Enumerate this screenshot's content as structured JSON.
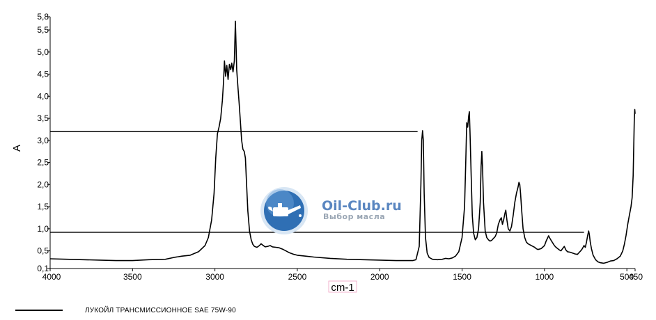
{
  "chart_data": {
    "type": "line",
    "title": "",
    "xlabel": "cm-1",
    "ylabel": "A",
    "xlim": [
      4000,
      450
    ],
    "ylim": [
      0.1,
      5.8
    ],
    "x_reversed": true,
    "yticks": [
      "5,8",
      "5,5",
      "5,0",
      "4,5",
      "4,0",
      "3,5",
      "3,0",
      "2,5",
      "2,0",
      "1,5",
      "1,0",
      "0,5",
      "0,1"
    ],
    "ytick_values": [
      5.8,
      5.5,
      5.0,
      4.5,
      4.0,
      3.5,
      3.0,
      2.5,
      2.0,
      1.5,
      1.0,
      0.5,
      0.1
    ],
    "xticks": [
      "4000",
      "3500",
      "3000",
      "2500",
      "2000",
      "1500",
      "1000",
      "500",
      "450"
    ],
    "xtick_values": [
      4000,
      3500,
      3000,
      2500,
      2000,
      1500,
      1000,
      500,
      450
    ],
    "reference_lines": [
      {
        "y": 3.2,
        "x_from": 4000,
        "x_to": 1770
      },
      {
        "y": 0.92,
        "x_from": 4000,
        "x_to": 760
      }
    ],
    "series": [
      {
        "name": "ЛУКОЙЛ ТРАНСМИССИОННОЕ SAE 75W-90",
        "color": "#000000",
        "points": [
          [
            4000,
            0.32
          ],
          [
            3900,
            0.31
          ],
          [
            3800,
            0.3
          ],
          [
            3700,
            0.29
          ],
          [
            3600,
            0.28
          ],
          [
            3500,
            0.28
          ],
          [
            3400,
            0.3
          ],
          [
            3300,
            0.31
          ],
          [
            3250,
            0.35
          ],
          [
            3200,
            0.38
          ],
          [
            3150,
            0.4
          ],
          [
            3100,
            0.48
          ],
          [
            3060,
            0.62
          ],
          [
            3040,
            0.8
          ],
          [
            3020,
            1.2
          ],
          [
            3005,
            1.8
          ],
          [
            2995,
            2.6
          ],
          [
            2985,
            3.15
          ],
          [
            2975,
            3.3
          ],
          [
            2965,
            3.5
          ],
          [
            2955,
            3.9
          ],
          [
            2948,
            4.3
          ],
          [
            2942,
            4.8
          ],
          [
            2935,
            4.45
          ],
          [
            2928,
            4.7
          ],
          [
            2920,
            4.38
          ],
          [
            2912,
            4.72
          ],
          [
            2904,
            4.6
          ],
          [
            2898,
            4.75
          ],
          [
            2890,
            4.55
          ],
          [
            2882,
            4.8
          ],
          [
            2876,
            5.7
          ],
          [
            2872,
            5.2
          ],
          [
            2868,
            4.6
          ],
          [
            2860,
            4.2
          ],
          [
            2852,
            3.8
          ],
          [
            2845,
            3.4
          ],
          [
            2838,
            3.0
          ],
          [
            2830,
            2.8
          ],
          [
            2822,
            2.75
          ],
          [
            2815,
            2.6
          ],
          [
            2808,
            2.0
          ],
          [
            2800,
            1.4
          ],
          [
            2790,
            0.95
          ],
          [
            2780,
            0.75
          ],
          [
            2770,
            0.65
          ],
          [
            2760,
            0.6
          ],
          [
            2745,
            0.58
          ],
          [
            2730,
            0.62
          ],
          [
            2720,
            0.66
          ],
          [
            2710,
            0.63
          ],
          [
            2695,
            0.59
          ],
          [
            2680,
            0.6
          ],
          [
            2665,
            0.62
          ],
          [
            2650,
            0.59
          ],
          [
            2630,
            0.58
          ],
          [
            2610,
            0.57
          ],
          [
            2590,
            0.54
          ],
          [
            2570,
            0.5
          ],
          [
            2550,
            0.46
          ],
          [
            2520,
            0.42
          ],
          [
            2500,
            0.4
          ],
          [
            2450,
            0.38
          ],
          [
            2400,
            0.36
          ],
          [
            2300,
            0.33
          ],
          [
            2200,
            0.31
          ],
          [
            2100,
            0.3
          ],
          [
            2000,
            0.29
          ],
          [
            1900,
            0.28
          ],
          [
            1800,
            0.28
          ],
          [
            1780,
            0.3
          ],
          [
            1760,
            0.6
          ],
          [
            1750,
            2.0
          ],
          [
            1745,
            3.0
          ],
          [
            1740,
            3.22
          ],
          [
            1735,
            3.0
          ],
          [
            1730,
            1.8
          ],
          [
            1722,
            0.8
          ],
          [
            1712,
            0.45
          ],
          [
            1700,
            0.35
          ],
          [
            1680,
            0.31
          ],
          [
            1650,
            0.3
          ],
          [
            1620,
            0.31
          ],
          [
            1600,
            0.33
          ],
          [
            1580,
            0.32
          ],
          [
            1560,
            0.34
          ],
          [
            1540,
            0.38
          ],
          [
            1520,
            0.48
          ],
          [
            1500,
            0.8
          ],
          [
            1485,
            1.5
          ],
          [
            1478,
            2.5
          ],
          [
            1472,
            3.4
          ],
          [
            1466,
            3.3
          ],
          [
            1460,
            3.55
          ],
          [
            1456,
            3.65
          ],
          [
            1452,
            3.2
          ],
          [
            1445,
            2.2
          ],
          [
            1438,
            1.3
          ],
          [
            1430,
            0.9
          ],
          [
            1420,
            0.75
          ],
          [
            1410,
            0.8
          ],
          [
            1400,
            1.0
          ],
          [
            1390,
            1.6
          ],
          [
            1385,
            2.4
          ],
          [
            1380,
            2.75
          ],
          [
            1376,
            2.4
          ],
          [
            1370,
            1.6
          ],
          [
            1360,
            0.95
          ],
          [
            1350,
            0.8
          ],
          [
            1340,
            0.75
          ],
          [
            1330,
            0.72
          ],
          [
            1320,
            0.74
          ],
          [
            1310,
            0.78
          ],
          [
            1300,
            0.82
          ],
          [
            1290,
            0.9
          ],
          [
            1280,
            1.1
          ],
          [
            1270,
            1.2
          ],
          [
            1262,
            1.25
          ],
          [
            1255,
            1.1
          ],
          [
            1248,
            1.2
          ],
          [
            1240,
            1.35
          ],
          [
            1235,
            1.42
          ],
          [
            1228,
            1.2
          ],
          [
            1220,
            1.0
          ],
          [
            1210,
            0.95
          ],
          [
            1200,
            1.05
          ],
          [
            1190,
            1.3
          ],
          [
            1180,
            1.6
          ],
          [
            1170,
            1.8
          ],
          [
            1160,
            1.95
          ],
          [
            1155,
            2.05
          ],
          [
            1150,
            2.0
          ],
          [
            1145,
            1.8
          ],
          [
            1138,
            1.4
          ],
          [
            1130,
            1.0
          ],
          [
            1120,
            0.8
          ],
          [
            1110,
            0.7
          ],
          [
            1100,
            0.66
          ],
          [
            1090,
            0.64
          ],
          [
            1080,
            0.62
          ],
          [
            1070,
            0.6
          ],
          [
            1060,
            0.58
          ],
          [
            1050,
            0.55
          ],
          [
            1040,
            0.53
          ],
          [
            1020,
            0.55
          ],
          [
            1000,
            0.62
          ],
          [
            990,
            0.72
          ],
          [
            980,
            0.8
          ],
          [
            975,
            0.84
          ],
          [
            970,
            0.8
          ],
          [
            960,
            0.74
          ],
          [
            950,
            0.68
          ],
          [
            940,
            0.62
          ],
          [
            930,
            0.58
          ],
          [
            920,
            0.55
          ],
          [
            910,
            0.52
          ],
          [
            900,
            0.5
          ],
          [
            890,
            0.55
          ],
          [
            880,
            0.6
          ],
          [
            870,
            0.52
          ],
          [
            860,
            0.48
          ],
          [
            845,
            0.47
          ],
          [
            830,
            0.45
          ],
          [
            815,
            0.43
          ],
          [
            800,
            0.42
          ],
          [
            790,
            0.46
          ],
          [
            780,
            0.5
          ],
          [
            770,
            0.55
          ],
          [
            760,
            0.62
          ],
          [
            752,
            0.58
          ],
          [
            745,
            0.7
          ],
          [
            738,
            0.85
          ],
          [
            732,
            0.95
          ],
          [
            728,
            0.88
          ],
          [
            722,
            0.7
          ],
          [
            715,
            0.55
          ],
          [
            705,
            0.4
          ],
          [
            690,
            0.3
          ],
          [
            675,
            0.25
          ],
          [
            660,
            0.23
          ],
          [
            640,
            0.22
          ],
          [
            620,
            0.24
          ],
          [
            600,
            0.27
          ],
          [
            580,
            0.28
          ],
          [
            560,
            0.32
          ],
          [
            540,
            0.38
          ],
          [
            525,
            0.5
          ],
          [
            515,
            0.65
          ],
          [
            505,
            0.85
          ],
          [
            495,
            1.1
          ],
          [
            485,
            1.3
          ],
          [
            475,
            1.5
          ],
          [
            468,
            1.7
          ],
          [
            462,
            2.2
          ],
          [
            458,
            2.9
          ],
          [
            455,
            3.45
          ],
          [
            452,
            3.7
          ],
          [
            450,
            3.6
          ]
        ]
      }
    ],
    "grid": false,
    "legend_position": "bottom-left"
  },
  "watermark": {
    "title": "Oil-Club.ru",
    "subtitle": "Выбор масла",
    "icon": "oil-can-icon"
  },
  "colors": {
    "line": "#000000",
    "watermark_blue": "#2f6fb4",
    "watermark_text": "#5a86c0"
  }
}
